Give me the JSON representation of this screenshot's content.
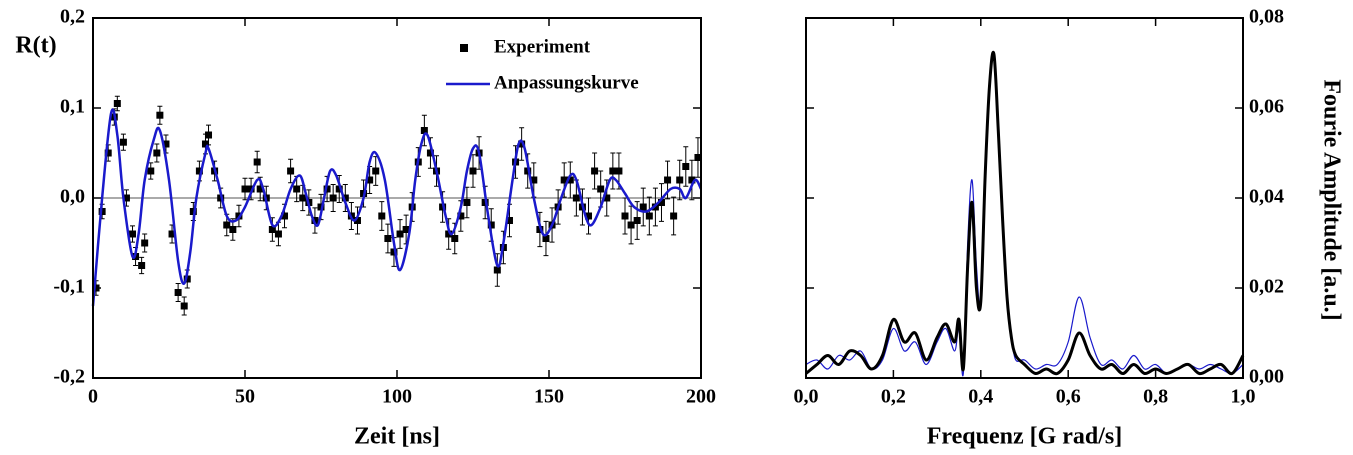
{
  "chart_data": [
    {
      "type": "line",
      "y_label": "R(t)",
      "x_label": "Zeit [ns]",
      "xlim": [
        0,
        200
      ],
      "xticks": [
        0,
        50,
        100,
        150,
        200
      ],
      "ylim": [
        -0.2,
        0.2
      ],
      "yticks": [
        {
          "value": -0.2,
          "label": "-0,2"
        },
        {
          "value": -0.1,
          "label": "-0,1"
        },
        {
          "value": 0,
          "label": "0,0"
        },
        {
          "value": 0.1,
          "label": "0,1"
        },
        {
          "value": 0.2,
          "label": "0,2"
        }
      ],
      "yaxis_side": "left",
      "zero_line": true,
      "legend": "upper right",
      "series": [
        {
          "name": "Experiment",
          "color": "#000000",
          "style": "points",
          "x": [
            1,
            3,
            5,
            7,
            8,
            10,
            11,
            13,
            14,
            16,
            17,
            19,
            21,
            22,
            24,
            26,
            28,
            30,
            31,
            33,
            35,
            37,
            38,
            40,
            42,
            44,
            46,
            48,
            50,
            52,
            54,
            55,
            57,
            59,
            61,
            63,
            65,
            67,
            69,
            71,
            73,
            75,
            77,
            79,
            81,
            83,
            85,
            87,
            89,
            91,
            93,
            95,
            97,
            99,
            101,
            103,
            105,
            107,
            109,
            111,
            113,
            115,
            117,
            119,
            121,
            123,
            125,
            127,
            129,
            131,
            133,
            135,
            137,
            139,
            141,
            143,
            145,
            147,
            149,
            151,
            153,
            155,
            157,
            159,
            161,
            163,
            165,
            167,
            169,
            171,
            173,
            175,
            177,
            179,
            181,
            183,
            185,
            187,
            189,
            191,
            193,
            195,
            197,
            199
          ],
          "values": [
            -0.1,
            -0.015,
            0.05,
            0.09,
            0.105,
            0.062,
            0.0,
            -0.04,
            -0.065,
            -0.075,
            -0.05,
            0.03,
            0.05,
            0.092,
            0.06,
            -0.04,
            -0.105,
            -0.12,
            -0.09,
            -0.015,
            0.03,
            0.06,
            0.07,
            0.03,
            0.0,
            -0.03,
            -0.035,
            -0.02,
            0.01,
            0.01,
            0.04,
            0.01,
            0.0,
            -0.035,
            -0.04,
            -0.02,
            0.03,
            0.01,
            0.0,
            -0.005,
            -0.025,
            -0.01,
            0.01,
            0.0,
            0.01,
            0.0,
            -0.02,
            -0.025,
            0.005,
            0.02,
            0.03,
            -0.02,
            -0.045,
            -0.06,
            -0.04,
            -0.035,
            -0.01,
            0.04,
            0.075,
            0.05,
            0.03,
            -0.01,
            -0.04,
            -0.045,
            -0.02,
            -0.005,
            0.03,
            0.05,
            -0.005,
            -0.03,
            -0.08,
            -0.055,
            -0.025,
            0.04,
            0.06,
            0.03,
            0.02,
            -0.035,
            -0.045,
            -0.03,
            -0.01,
            0.02,
            0.02,
            0.0,
            -0.01,
            -0.02,
            0.03,
            0.01,
            0.0,
            0.03,
            0.03,
            -0.02,
            -0.03,
            -0.025,
            -0.01,
            -0.02,
            -0.01,
            -0.005,
            0.02,
            -0.02,
            0.02,
            0.035,
            0.02,
            0.045
          ],
          "errors": [
            0.008,
            0.008,
            0.009,
            0.009,
            0.008,
            0.009,
            0.009,
            0.009,
            0.01,
            0.009,
            0.01,
            0.009,
            0.01,
            0.01,
            0.01,
            0.01,
            0.01,
            0.01,
            0.01,
            0.01,
            0.011,
            0.011,
            0.011,
            0.011,
            0.011,
            0.012,
            0.012,
            0.012,
            0.012,
            0.012,
            0.012,
            0.013,
            0.013,
            0.013,
            0.013,
            0.013,
            0.013,
            0.014,
            0.014,
            0.014,
            0.014,
            0.014,
            0.014,
            0.015,
            0.015,
            0.015,
            0.015,
            0.015,
            0.015,
            0.015,
            0.016,
            0.016,
            0.016,
            0.016,
            0.016,
            0.016,
            0.016,
            0.016,
            0.017,
            0.017,
            0.017,
            0.017,
            0.017,
            0.017,
            0.017,
            0.017,
            0.018,
            0.018,
            0.018,
            0.018,
            0.018,
            0.018,
            0.018,
            0.018,
            0.018,
            0.019,
            0.019,
            0.019,
            0.019,
            0.019,
            0.019,
            0.019,
            0.02,
            0.02,
            0.02,
            0.02,
            0.02,
            0.02,
            0.02,
            0.02,
            0.02,
            0.02,
            0.021,
            0.021,
            0.021,
            0.021,
            0.021,
            0.021,
            0.021,
            0.021,
            0.022,
            0.022,
            0.022,
            0.022
          ]
        },
        {
          "name": "Anpassungskurve",
          "color": "#1a1acc",
          "style": "line",
          "width": 2.5,
          "x": [
            0,
            3,
            6,
            8,
            10,
            13,
            15,
            17,
            20,
            22,
            25,
            28,
            30,
            32,
            34,
            37,
            38,
            41,
            44,
            47,
            50,
            54,
            56,
            59,
            62,
            65,
            68,
            70,
            72,
            74,
            76,
            78,
            80,
            83,
            86,
            89,
            91,
            93,
            96,
            99,
            101,
            104,
            106,
            108,
            110,
            113,
            116,
            118,
            121,
            123,
            125,
            127,
            130,
            133,
            135,
            138,
            140,
            142,
            145,
            148,
            151,
            154,
            157,
            159,
            162,
            164,
            167,
            170,
            172,
            175,
            178,
            182,
            186,
            190,
            193,
            195,
            198,
            200
          ],
          "values": [
            -0.12,
            0.0,
            0.095,
            0.07,
            0.0,
            -0.065,
            -0.04,
            0.02,
            0.065,
            0.075,
            0.02,
            -0.07,
            -0.095,
            -0.06,
            0.0,
            0.05,
            0.055,
            0.02,
            -0.02,
            -0.025,
            -0.01,
            0.02,
            0.01,
            -0.03,
            -0.02,
            0.01,
            0.025,
            0.005,
            -0.02,
            -0.03,
            0.0,
            0.03,
            0.025,
            -0.005,
            -0.025,
            0.0,
            0.04,
            0.05,
            0.02,
            -0.05,
            -0.08,
            -0.04,
            0.02,
            0.06,
            0.07,
            0.03,
            -0.02,
            -0.04,
            -0.01,
            0.03,
            0.055,
            0.05,
            -0.02,
            -0.075,
            -0.05,
            0.02,
            0.06,
            0.055,
            0.0,
            -0.04,
            -0.03,
            0.0,
            0.025,
            0.02,
            -0.02,
            -0.03,
            -0.01,
            0.02,
            0.02,
            0.005,
            -0.01,
            -0.015,
            -0.005,
            0.01,
            0.01,
            0.0,
            0.02,
            0.01
          ]
        }
      ]
    },
    {
      "type": "line",
      "y_label": "Fourie Amplitude [a.u.]",
      "x_label": "Frequenz [G rad/s]",
      "xlim": [
        0,
        1
      ],
      "xticks": [
        {
          "value": 0,
          "label": "0,0"
        },
        {
          "value": 0.2,
          "label": "0,2"
        },
        {
          "value": 0.4,
          "label": "0,4"
        },
        {
          "value": 0.6,
          "label": "0,6"
        },
        {
          "value": 0.8,
          "label": "0,8"
        },
        {
          "value": 1,
          "label": "1,0"
        }
      ],
      "ylim": [
        0,
        0.08
      ],
      "yticks": [
        {
          "value": 0,
          "label": "0,00"
        },
        {
          "value": 0.02,
          "label": "0,02"
        },
        {
          "value": 0.04,
          "label": "0,04"
        },
        {
          "value": 0.06,
          "label": "0,06"
        },
        {
          "value": 0.08,
          "label": "0,08"
        }
      ],
      "yaxis_side": "right",
      "x": [
        0,
        0.025,
        0.05,
        0.075,
        0.1,
        0.125,
        0.15,
        0.175,
        0.2,
        0.225,
        0.25,
        0.275,
        0.3,
        0.32,
        0.34,
        0.35,
        0.36,
        0.37,
        0.38,
        0.39,
        0.4,
        0.41,
        0.42,
        0.43,
        0.44,
        0.45,
        0.46,
        0.47,
        0.48,
        0.5,
        0.525,
        0.55,
        0.575,
        0.6,
        0.625,
        0.65,
        0.675,
        0.7,
        0.725,
        0.75,
        0.775,
        0.8,
        0.825,
        0.85,
        0.875,
        0.9,
        0.925,
        0.95,
        0.975,
        1.0
      ],
      "series": [
        {
          "color": "#1a1acc",
          "style": "line",
          "width": 1.2,
          "values": [
            0.003,
            0.004,
            0.002,
            0.005,
            0.004,
            0.006,
            0.002,
            0.004,
            0.011,
            0.006,
            0.008,
            0.003,
            0.008,
            0.011,
            0.006,
            0.011,
            0.001,
            0.03,
            0.044,
            0.025,
            0.016,
            0.042,
            0.064,
            0.071,
            0.054,
            0.034,
            0.017,
            0.009,
            0.004,
            0.004,
            0.002,
            0.003,
            0.003,
            0.008,
            0.018,
            0.009,
            0.003,
            0.004,
            0.002,
            0.005,
            0.002,
            0.003,
            0.001,
            0.002,
            0.003,
            0.002,
            0.003,
            0.002,
            0.001,
            0.003
          ]
        },
        {
          "color": "#000000",
          "style": "line",
          "width": 3,
          "values": [
            0.001,
            0.003,
            0.005,
            0.003,
            0.006,
            0.005,
            0.002,
            0.005,
            0.013,
            0.008,
            0.01,
            0.004,
            0.009,
            0.012,
            0.008,
            0.013,
            0.002,
            0.025,
            0.039,
            0.02,
            0.017,
            0.045,
            0.065,
            0.072,
            0.055,
            0.035,
            0.018,
            0.009,
            0.005,
            0.003,
            0.001,
            0.002,
            0.001,
            0.004,
            0.01,
            0.005,
            0.002,
            0.003,
            0.001,
            0.003,
            0.001,
            0.002,
            0.001,
            0.002,
            0.003,
            0.001,
            0.002,
            0.003,
            0.001,
            0.005
          ]
        }
      ]
    }
  ]
}
